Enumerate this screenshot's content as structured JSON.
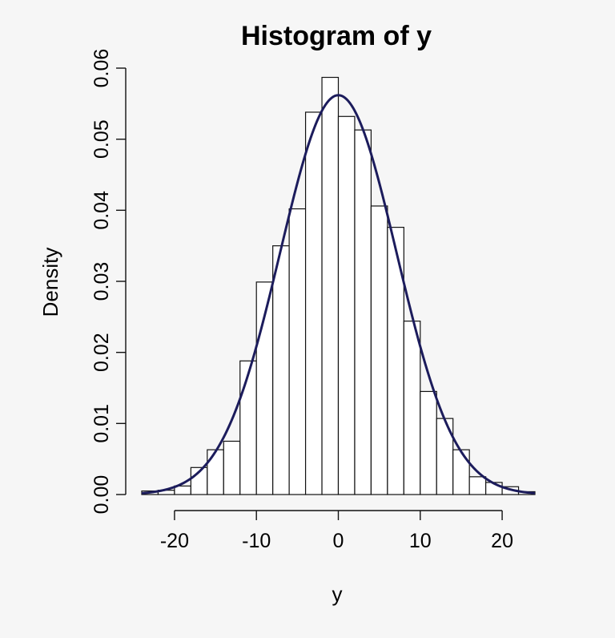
{
  "chart_data": {
    "type": "bar",
    "title": "Histogram of y",
    "xlabel": "y",
    "ylabel": "Density",
    "xlim": [
      -24,
      24
    ],
    "ylim": [
      0,
      0.06
    ],
    "x_ticks": [
      -20,
      -10,
      0,
      10,
      20
    ],
    "x_tick_labels": [
      "-20",
      "-10",
      "0",
      "10",
      "20"
    ],
    "y_ticks": [
      0,
      0.01,
      0.02,
      0.03,
      0.04,
      0.05,
      0.06
    ],
    "y_tick_labels": [
      "0.00",
      "0.01",
      "0.02",
      "0.03",
      "0.04",
      "0.05",
      "0.06"
    ],
    "grid": false,
    "bin_width": 2,
    "bins": [
      {
        "x0": -24,
        "x1": -22,
        "density": 0.0005
      },
      {
        "x0": -22,
        "x1": -20,
        "density": 0.0006
      },
      {
        "x0": -20,
        "x1": -18,
        "density": 0.0012
      },
      {
        "x0": -18,
        "x1": -16,
        "density": 0.0038
      },
      {
        "x0": -16,
        "x1": -14,
        "density": 0.0063
      },
      {
        "x0": -14,
        "x1": -12,
        "density": 0.0075
      },
      {
        "x0": -12,
        "x1": -10,
        "density": 0.0188
      },
      {
        "x0": -10,
        "x1": -8,
        "density": 0.0299
      },
      {
        "x0": -8,
        "x1": -6,
        "density": 0.035
      },
      {
        "x0": -6,
        "x1": -4,
        "density": 0.0402
      },
      {
        "x0": -4,
        "x1": -2,
        "density": 0.0538
      },
      {
        "x0": -2,
        "x1": 0,
        "density": 0.0587
      },
      {
        "x0": 0,
        "x1": 2,
        "density": 0.0532
      },
      {
        "x0": 2,
        "x1": 4,
        "density": 0.0513
      },
      {
        "x0": 4,
        "x1": 6,
        "density": 0.0406
      },
      {
        "x0": 6,
        "x1": 8,
        "density": 0.0376
      },
      {
        "x0": 8,
        "x1": 10,
        "density": 0.0244
      },
      {
        "x0": 10,
        "x1": 12,
        "density": 0.0145
      },
      {
        "x0": 12,
        "x1": 14,
        "density": 0.0107
      },
      {
        "x0": 14,
        "x1": 16,
        "density": 0.0063
      },
      {
        "x0": 16,
        "x1": 18,
        "density": 0.0025
      },
      {
        "x0": 18,
        "x1": 20,
        "density": 0.0017
      },
      {
        "x0": 20,
        "x1": 22,
        "density": 0.0011
      },
      {
        "x0": 22,
        "x1": 24,
        "density": 0.0004
      }
    ],
    "curve": {
      "type": "normal-density",
      "mean": 0,
      "sd": 7.1,
      "color": "#1c1c5c"
    }
  }
}
